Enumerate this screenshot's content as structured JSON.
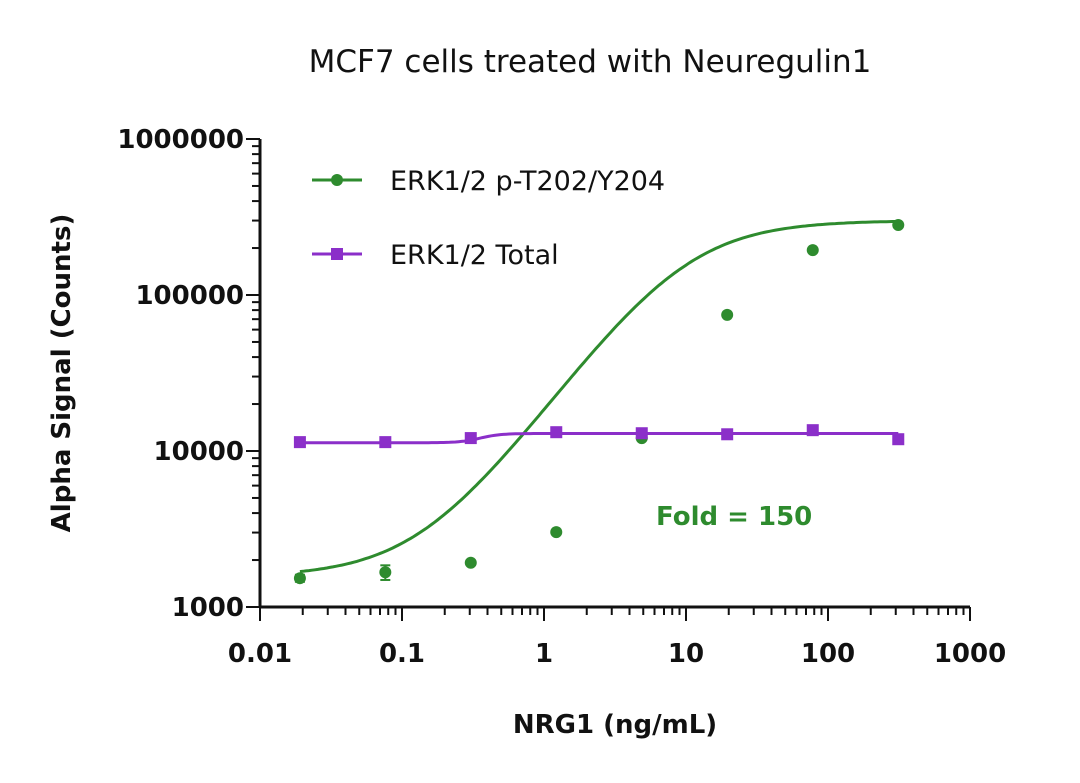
{
  "chart_data": {
    "type": "scatter",
    "title": "MCF7 cells treated with Neuregulin1",
    "xlabel": "NRG1 (ng/mL)",
    "ylabel": "Alpha Signal (Counts)",
    "xscale": "log",
    "yscale": "log",
    "xlim": [
      0.01,
      1000
    ],
    "ylim": [
      1000,
      1000000
    ],
    "x_ticks": [
      "0.01",
      "0.1",
      "1",
      "10",
      "100",
      "1000"
    ],
    "x_tick_values": [
      0.01,
      0.1,
      1,
      10,
      100,
      1000
    ],
    "y_ticks": [
      "1000",
      "10000",
      "100000",
      "1000000"
    ],
    "y_tick_values": [
      1000,
      10000,
      100000,
      1000000
    ],
    "grid": false,
    "legend_position": "top-left",
    "x": [
      0.0191,
      0.0763,
      0.305,
      1.22,
      4.88,
      19.5,
      78.1,
      312.5
    ],
    "series": [
      {
        "name": "ERK1/2 p-T202/Y204",
        "color": "#2e8b2e",
        "marker": "circle",
        "values": [
          1530,
          1670,
          1920,
          3020,
          12100,
          74600,
          194000,
          281000
        ],
        "errors": [
          80,
          180,
          60,
          80,
          300,
          1500,
          4000,
          5000
        ],
        "fit": {
          "bottom": 1560,
          "top": 300000,
          "ec50": 9.5,
          "hill": 1.25
        }
      },
      {
        "name": "ERK1/2 Total",
        "color": "#8b2fc9",
        "marker": "square",
        "values": [
          11400,
          11400,
          12100,
          13200,
          13000,
          12800,
          13600,
          11900
        ],
        "errors": [
          0,
          0,
          0,
          0,
          0,
          0,
          0,
          0
        ],
        "fit": {
          "bottom": 11300,
          "top": 12950,
          "ec50": 0.36,
          "hill": 6
        }
      }
    ],
    "annotations": [
      {
        "text": "Fold = 150",
        "color": "#2e8b2e"
      }
    ]
  }
}
